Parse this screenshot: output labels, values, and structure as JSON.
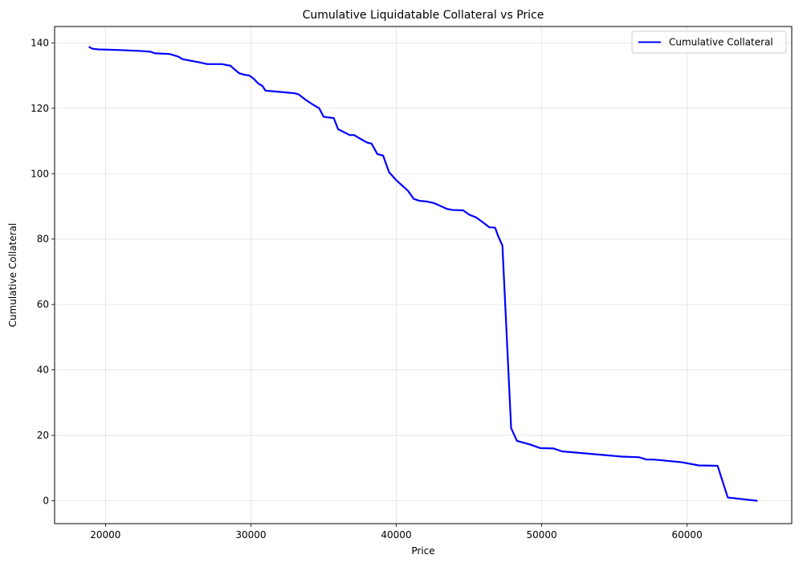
{
  "chart_data": {
    "type": "line",
    "title": "Cumulative Liquidatable Collateral vs Price",
    "xlabel": "Price",
    "ylabel": "Cumulative Collateral",
    "xlim": [
      16500,
      67200
    ],
    "ylim": [
      -7,
      145
    ],
    "xticks": [
      20000,
      30000,
      40000,
      50000,
      60000
    ],
    "yticks": [
      0,
      20,
      40,
      60,
      80,
      100,
      120,
      140
    ],
    "grid": true,
    "legend_position": "top-right",
    "series": [
      {
        "name": "Cumulative Collateral",
        "color": "#0000ff",
        "points": [
          [
            18900,
            138.7
          ],
          [
            19100,
            138.2
          ],
          [
            19500,
            138.0
          ],
          [
            21000,
            137.8
          ],
          [
            22500,
            137.5
          ],
          [
            23100,
            137.3
          ],
          [
            23400,
            136.8
          ],
          [
            24400,
            136.6
          ],
          [
            25000,
            135.8
          ],
          [
            25300,
            135.0
          ],
          [
            26500,
            134.0
          ],
          [
            27000,
            133.5
          ],
          [
            28000,
            133.5
          ],
          [
            28600,
            133.0
          ],
          [
            28900,
            131.8
          ],
          [
            29200,
            130.7
          ],
          [
            29500,
            130.3
          ],
          [
            29900,
            130.0
          ],
          [
            30200,
            129.0
          ],
          [
            30500,
            127.6
          ],
          [
            30800,
            126.8
          ],
          [
            31000,
            125.4
          ],
          [
            31500,
            125.2
          ],
          [
            32500,
            124.8
          ],
          [
            33000,
            124.6
          ],
          [
            33300,
            124.2
          ],
          [
            33700,
            122.8
          ],
          [
            34200,
            121.3
          ],
          [
            34700,
            120.0
          ],
          [
            35000,
            117.4
          ],
          [
            35300,
            117.2
          ],
          [
            35700,
            117.0
          ],
          [
            36000,
            113.6
          ],
          [
            36400,
            112.7
          ],
          [
            36800,
            111.8
          ],
          [
            37100,
            111.8
          ],
          [
            37600,
            110.5
          ],
          [
            38000,
            109.5
          ],
          [
            38300,
            109.2
          ],
          [
            38700,
            106.0
          ],
          [
            39100,
            105.5
          ],
          [
            39500,
            100.5
          ],
          [
            40000,
            98.0
          ],
          [
            40800,
            94.8
          ],
          [
            41200,
            92.3
          ],
          [
            41600,
            91.7
          ],
          [
            42100,
            91.5
          ],
          [
            42600,
            91.0
          ],
          [
            43000,
            90.2
          ],
          [
            43500,
            89.2
          ],
          [
            43900,
            88.9
          ],
          [
            44600,
            88.8
          ],
          [
            45000,
            87.5
          ],
          [
            45500,
            86.6
          ],
          [
            46000,
            85.0
          ],
          [
            46400,
            83.6
          ],
          [
            46800,
            83.5
          ],
          [
            47000,
            81.0
          ],
          [
            47300,
            78.0
          ],
          [
            47900,
            22.2
          ],
          [
            48300,
            18.3
          ],
          [
            49200,
            17.2
          ],
          [
            49900,
            16.1
          ],
          [
            50800,
            16.0
          ],
          [
            51400,
            15.1
          ],
          [
            55500,
            13.5
          ],
          [
            56700,
            13.3
          ],
          [
            57200,
            12.6
          ],
          [
            57700,
            12.6
          ],
          [
            59600,
            11.8
          ],
          [
            60800,
            10.8
          ],
          [
            62100,
            10.7
          ],
          [
            62800,
            1.0
          ],
          [
            64800,
            0.0
          ]
        ]
      }
    ]
  }
}
